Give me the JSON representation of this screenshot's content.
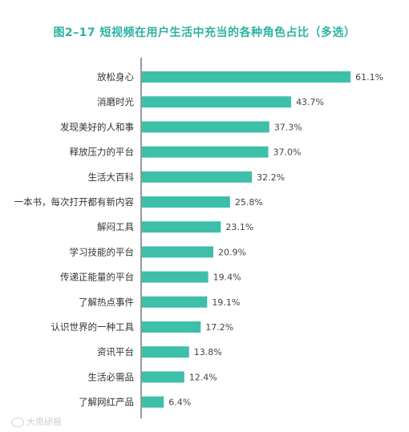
{
  "colors": {
    "bar": "#3dbfa9",
    "title": "#2bb3a2",
    "axis": "#555555",
    "label": "#333333",
    "value": "#444444"
  },
  "watermark": "大思研报",
  "chart_data": {
    "type": "bar",
    "orientation": "horizontal",
    "title": "图2–17  短视频在用户生活中充当的各种角色占比（多选）",
    "value_suffix": "%",
    "xlim": [
      0,
      62
    ],
    "grid": false,
    "categories": [
      "放松身心",
      "消磨时光",
      "发现美好的人和事",
      "释放压力的平台",
      "生活大百科",
      "一本书，每次打开都有新内容",
      "解闷工具",
      "学习技能的平台",
      "传递正能量的平台",
      "了解热点事件",
      "认识世界的一种工具",
      "资讯平台",
      "生活必需品",
      "了解网红产品"
    ],
    "values": [
      61.1,
      43.7,
      37.3,
      37.0,
      32.2,
      25.8,
      23.1,
      20.9,
      19.4,
      19.1,
      17.2,
      13.8,
      12.4,
      6.4
    ]
  }
}
